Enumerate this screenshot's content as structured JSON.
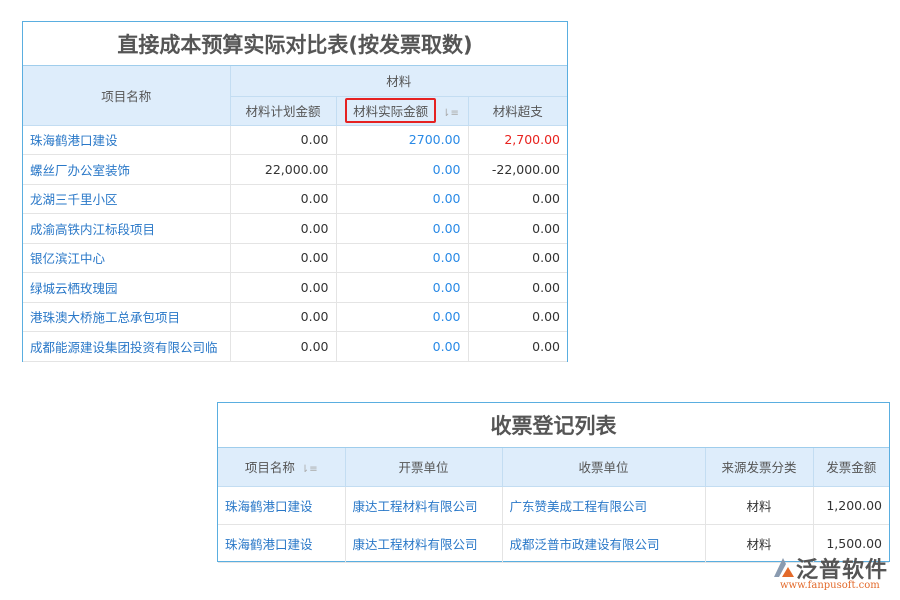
{
  "budget_table": {
    "title": "直接成本预算实际对比表(按发票取数)",
    "headers": {
      "project": "项目名称",
      "group": "材料",
      "plan": "材料计划金额",
      "actual": "材料实际金额",
      "over": "材料超支"
    },
    "rows": [
      {
        "project": "珠海鹤港口建设",
        "plan": "0.00",
        "actual": "2700.00",
        "over": "2,700.00"
      },
      {
        "project": "螺丝厂办公室装饰",
        "plan": "22,000.00",
        "actual": "0.00",
        "over": "-22,000.00"
      },
      {
        "project": "龙湖三千里小区",
        "plan": "0.00",
        "actual": "0.00",
        "over": "0.00"
      },
      {
        "project": "成渝高铁内江标段项目",
        "plan": "0.00",
        "actual": "0.00",
        "over": "0.00"
      },
      {
        "project": "银亿滨江中心",
        "plan": "0.00",
        "actual": "0.00",
        "over": "0.00"
      },
      {
        "project": "绿城云栖玫瑰园",
        "plan": "0.00",
        "actual": "0.00",
        "over": "0.00"
      },
      {
        "project": "港珠澳大桥施工总承包项目",
        "plan": "0.00",
        "actual": "0.00",
        "over": "0.00"
      },
      {
        "project": "成都能源建设集团投资有限公司临",
        "plan": "0.00",
        "actual": "0.00",
        "over": "0.00"
      }
    ]
  },
  "invoice_table": {
    "title": "收票登记列表",
    "headers": {
      "project": "项目名称",
      "issuer": "开票单位",
      "receiver": "收票单位",
      "category": "来源发票分类",
      "amount": "发票金额"
    },
    "rows": [
      {
        "project": "珠海鹤港口建设",
        "issuer": "康达工程材料有限公司",
        "receiver": "广东赞美成工程有限公司",
        "category": "材料",
        "amount": "1,200.00"
      },
      {
        "project": "珠海鹤港口建设",
        "issuer": "康达工程材料有限公司",
        "receiver": "成都泛普市政建设有限公司",
        "category": "材料",
        "amount": "1,500.00"
      }
    ]
  },
  "logo": {
    "name": "泛普软件",
    "url": "www.fanpusoft.com"
  },
  "colors": {
    "link": "#2a78c8",
    "highlight": "#e52222",
    "over_red": "#e8231f",
    "header_bg": "#deedfb"
  }
}
